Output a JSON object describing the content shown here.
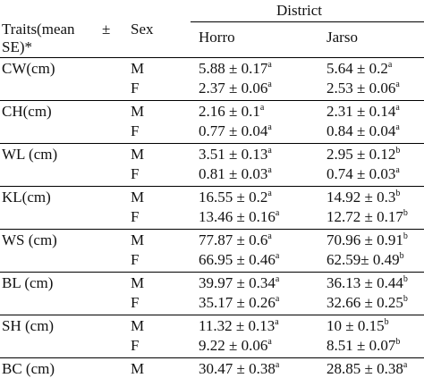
{
  "header": {
    "traits_line1": "Traits(mean",
    "traits_pm": "±",
    "traits_line2": "SE)*",
    "sex": "Sex",
    "district": "District",
    "col1": "Horro",
    "col2": "Jarso"
  },
  "rows": [
    {
      "trait": "CW(cm)",
      "m_sex": "M",
      "m_horro": "5.88 ± 0.17",
      "m_horro_sup": "a",
      "m_jarso": "5.64  ± 0.2",
      "m_jarso_sup": "a",
      "f_sex": "F",
      "f_horro": "2.37 ± 0.06",
      "f_horro_sup": "a",
      "f_jarso": "2.53 ± 0.06",
      "f_jarso_sup": "a"
    },
    {
      "trait": "CH(cm)",
      "m_sex": "M",
      "m_horro": "2.16 ± 0.1",
      "m_horro_sup": "a",
      "m_jarso": "2.31 ± 0.14",
      "m_jarso_sup": "a",
      "f_sex": "F",
      "f_horro": "0.77 ± 0.04",
      "f_horro_sup": "a",
      "f_jarso": "0.84 ± 0.04",
      "f_jarso_sup": "a"
    },
    {
      "trait": "WL (cm)",
      "m_sex": "M",
      "m_horro": "3.51 ± 0.13",
      "m_horro_sup": "a",
      "m_jarso": "2.95 ± 0.12",
      "m_jarso_sup": "b",
      "f_sex": "F",
      "f_horro": "0.81 ± 0.03",
      "f_horro_sup": "a",
      "f_jarso": "0.74 ± 0.03",
      "f_jarso_sup": "a"
    },
    {
      "trait": "KL(cm)",
      "m_sex": "M",
      "m_horro": "16.55 ± 0.2",
      "m_horro_sup": "a",
      "m_jarso": "14.92 ± 0.3",
      "m_jarso_sup": "b",
      "f_sex": "F",
      "f_horro": "13.46 ± 0.16",
      "f_horro_sup": "a",
      "f_jarso": "12.72  ± 0.17",
      "f_jarso_sup": "b"
    },
    {
      "trait": "WS (cm)",
      "m_sex": "M",
      "m_horro": "77.87 ± 0.6",
      "m_horro_sup": "a",
      "m_jarso": "70.96 ± 0.91",
      "m_jarso_sup": "b",
      "f_sex": "F",
      "f_horro": "66.95 ± 0.46",
      "f_horro_sup": "a",
      "f_jarso": "62.59± 0.49",
      "f_jarso_sup": "b"
    },
    {
      "trait": "BL (cm)",
      "m_sex": "M",
      "m_horro": "39.97 ± 0.34",
      "m_horro_sup": "a",
      "m_jarso": "36.13 ± 0.44",
      "m_jarso_sup": "b",
      "f_sex": "F",
      "f_horro": "35.17 ± 0.26",
      "f_horro_sup": "a",
      "f_jarso": "32.66 ± 0.25",
      "f_jarso_sup": "b"
    },
    {
      "trait": "SH (cm)",
      "m_sex": "M",
      "m_horro": "11.32 ± 0.13",
      "m_horro_sup": "a",
      "m_jarso": "10 ± 0.15",
      "m_jarso_sup": "b",
      "f_sex": "F",
      "f_horro": "9.22 ± 0.06",
      "f_horro_sup": "a",
      "f_jarso": "8.51 ± 0.07",
      "f_jarso_sup": "b"
    },
    {
      "trait": "BC (cm)",
      "m_sex": "M",
      "m_horro": "30.47 ± 0.38",
      "m_horro_sup": "a",
      "m_jarso": "28.85 ± 0.38",
      "m_jarso_sup": "a",
      "f_sex": "",
      "f_horro": "",
      "f_horro_sup": "",
      "f_jarso": "",
      "f_jarso_sup": ""
    }
  ]
}
